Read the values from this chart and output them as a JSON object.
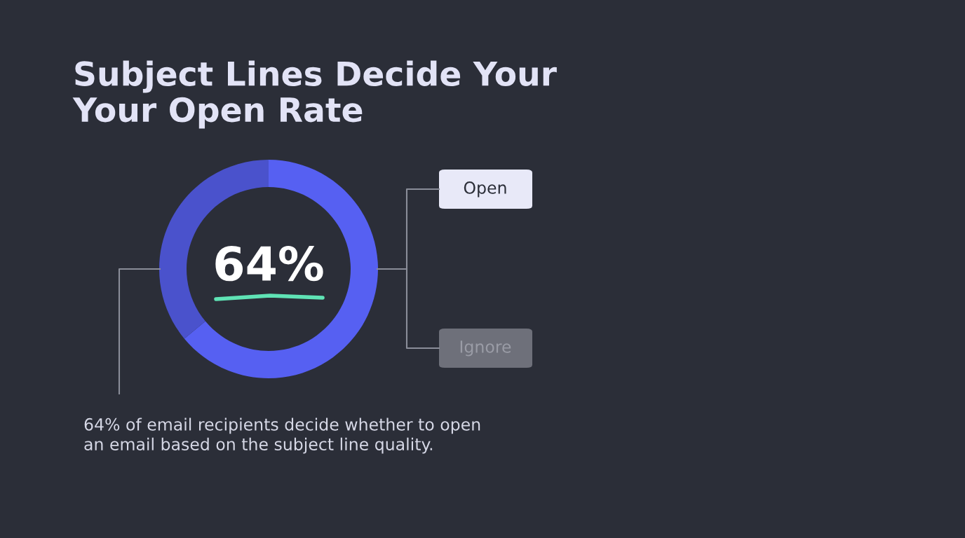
{
  "chart_data": {
    "type": "donut",
    "title": "Subject Lines Decide Your\nYour Open Rate",
    "categories": [
      null,
      null
    ],
    "values": [
      64,
      36
    ],
    "colors": [
      "#5660f2",
      "#4a52cc"
    ],
    "annotations": [
      "64%",
      "Open",
      "Ignore",
      "64% of email recipients decide whether to open\nan email based on the subject line quality."
    ]
  }
}
